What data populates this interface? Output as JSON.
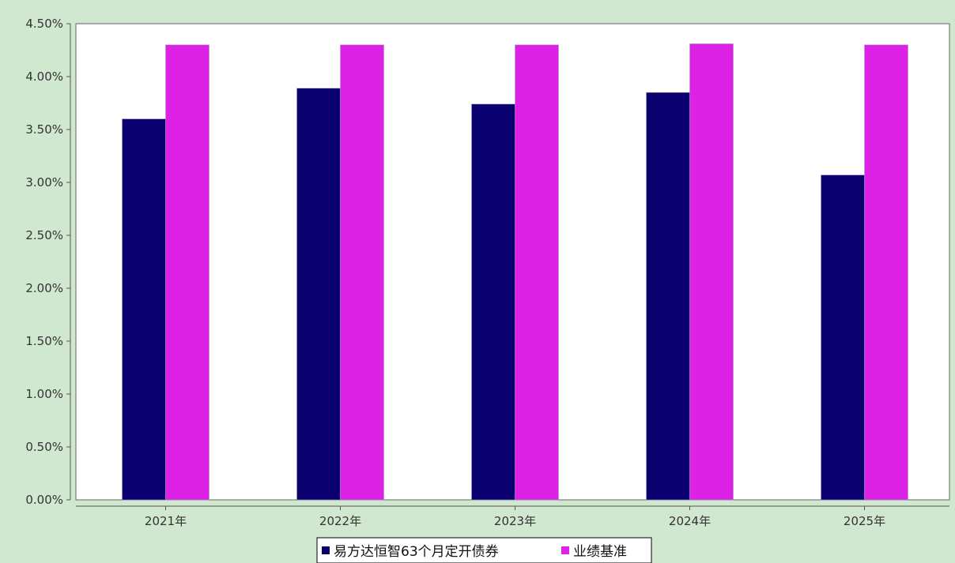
{
  "chart_data": {
    "type": "bar",
    "categories": [
      "2021年",
      "2022年",
      "2023年",
      "2024年",
      "2025年"
    ],
    "series": [
      {
        "name": "易方达恒智63个月定开债券",
        "values": [
          3.6,
          3.89,
          3.74,
          3.85,
          3.07
        ],
        "color": "#0b0070"
      },
      {
        "name": "业绩基准",
        "values": [
          4.3,
          4.3,
          4.3,
          4.31,
          4.3
        ],
        "color": "#dd22e6"
      }
    ],
    "y_ticks": [
      "0.00%",
      "0.50%",
      "1.00%",
      "1.50%",
      "2.00%",
      "2.50%",
      "3.00%",
      "3.50%",
      "4.00%",
      "4.50%"
    ],
    "ylim": [
      0,
      4.5
    ],
    "grid": false,
    "legend_position": "bottom-center",
    "background_color": "#cfe8cf",
    "plot_background_color": "#ffffff"
  }
}
